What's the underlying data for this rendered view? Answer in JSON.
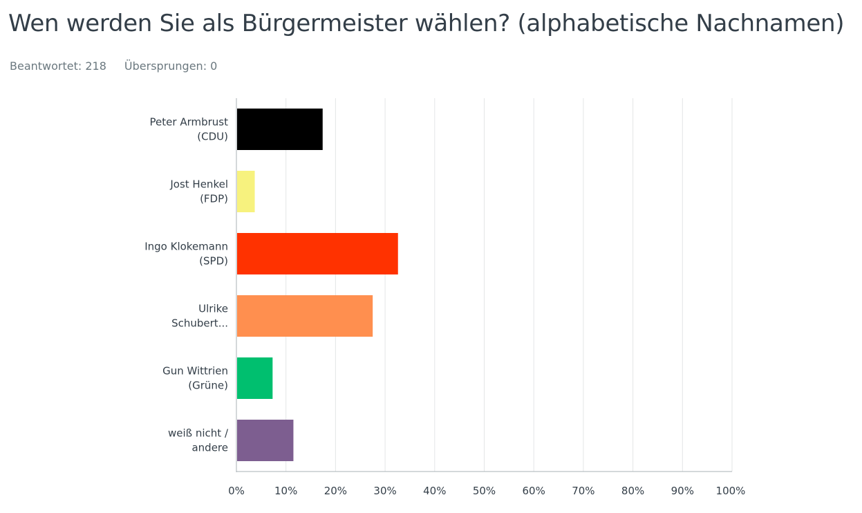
{
  "header": {
    "title": "Wen werden Sie als Bürgermeister wählen? (alphabetische Nachnamen)",
    "answered_label": "Beantwortet: 218",
    "skipped_label": "Übersprungen: 0"
  },
  "chart_data": {
    "type": "bar",
    "orientation": "horizontal",
    "title": "Wen werden Sie als Bürgermeister wählen? (alphabetische Nachnamen)",
    "categories": [
      [
        "Peter Armbrust",
        "(CDU)"
      ],
      [
        "Jost Henkel",
        "(FDP)"
      ],
      [
        "Ingo Klokemann",
        "(SPD)"
      ],
      [
        "Ulrike",
        "Schubert..."
      ],
      [
        "Gun Wittrien",
        "(Grüne)"
      ],
      [
        "weiß nicht /",
        "andere"
      ]
    ],
    "values": [
      17.4,
      3.7,
      32.6,
      27.5,
      7.3,
      11.5
    ],
    "colors": [
      "#000000",
      "#f7f27e",
      "#ff3200",
      "#ff8f4f",
      "#00bf6f",
      "#7d5e90"
    ],
    "x_ticks": [
      "0%",
      "10%",
      "20%",
      "30%",
      "40%",
      "50%",
      "60%",
      "70%",
      "80%",
      "90%",
      "100%"
    ],
    "xlim": [
      0,
      100
    ],
    "unit": "%",
    "grid": true,
    "legend": "none"
  }
}
